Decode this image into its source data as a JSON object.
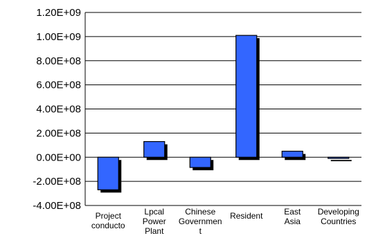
{
  "chart_data": {
    "type": "bar",
    "title": "",
    "xlabel": "",
    "ylabel": "",
    "categories": [
      [
        "Project",
        "conducto"
      ],
      [
        "Lpcal",
        "Power",
        "Plant"
      ],
      [
        "Chinese",
        "Governmen",
        "t"
      ],
      [
        "Resident"
      ],
      [
        "East",
        "Asia"
      ],
      [
        "Developing",
        "Countries"
      ]
    ],
    "values": [
      -270000000,
      130000000,
      -85000000,
      1010000000,
      50000000,
      -10000000
    ],
    "ylim": [
      -400000000,
      1200000000
    ],
    "yticks": [
      -400000000,
      -200000000,
      0,
      200000000,
      400000000,
      600000000,
      800000000,
      1000000000,
      1200000000
    ],
    "ytick_labels": [
      "-4.00E+08",
      "-2.00E+08",
      "0.00E+00",
      "2.00E+08",
      "4.00E+08",
      "6.00E+08",
      "8.00E+08",
      "1.00E+09",
      "1.20E+09"
    ],
    "grid": true,
    "legend": "none",
    "colors": {
      "bar": "#3366ff",
      "shadow": "#000000",
      "grid": "#000000",
      "axis": "#000000"
    }
  }
}
